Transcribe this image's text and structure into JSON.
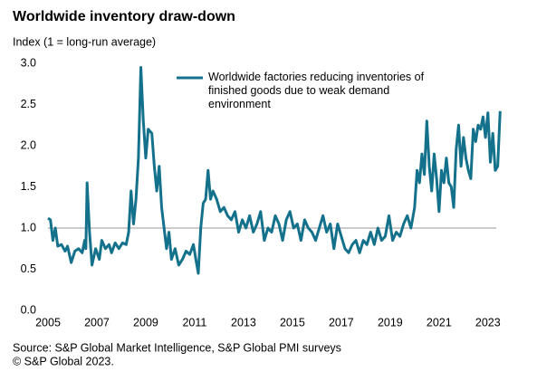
{
  "chart_data": {
    "type": "line",
    "title": "Worldwide inventory draw-down",
    "y_axis_label": "Index (1 = long-run average)",
    "source": "Source: S&P Global Market Intelligence, S&P Global PMI surveys",
    "copyright": "© S&P Global 2023.",
    "xlim": [
      2005,
      2023.6
    ],
    "xticks": [
      2005,
      2007,
      2009,
      2011,
      2013,
      2015,
      2017,
      2019,
      2021,
      2023
    ],
    "ylim": [
      0,
      3
    ],
    "yticks": [
      {
        "value": 0,
        "label": "0.0"
      },
      {
        "value": 0.5,
        "label": "0.5"
      },
      {
        "value": 1,
        "label": "1.0"
      },
      {
        "value": 1.5,
        "label": "1.5"
      },
      {
        "value": 2,
        "label": "2.0"
      },
      {
        "value": 2.5,
        "label": "2.5"
      },
      {
        "value": 3,
        "label": "3.0"
      }
    ],
    "reference_line": 1,
    "legend": "top",
    "x": [
      2005.0,
      2005.1,
      2005.2,
      2005.3,
      2005.4,
      2005.55,
      2005.7,
      2005.8,
      2005.95,
      2006.1,
      2006.25,
      2006.4,
      2006.5,
      2006.55,
      2006.6,
      2006.7,
      2006.8,
      2006.95,
      2007.1,
      2007.2,
      2007.35,
      2007.5,
      2007.6,
      2007.75,
      2007.9,
      2008.05,
      2008.2,
      2008.3,
      2008.4,
      2008.5,
      2008.6,
      2008.7,
      2008.8,
      2008.9,
      2009.0,
      2009.1,
      2009.25,
      2009.35,
      2009.45,
      2009.55,
      2009.65,
      2009.75,
      2009.85,
      2009.95,
      2010.05,
      2010.2,
      2010.35,
      2010.5,
      2010.65,
      2010.8,
      2010.95,
      2011.05,
      2011.15,
      2011.25,
      2011.35,
      2011.45,
      2011.55,
      2011.65,
      2011.75,
      2011.9,
      2012.05,
      2012.2,
      2012.35,
      2012.5,
      2012.65,
      2012.8,
      2012.95,
      2013.1,
      2013.25,
      2013.4,
      2013.55,
      2013.7,
      2013.85,
      2014.0,
      2014.15,
      2014.3,
      2014.45,
      2014.6,
      2014.75,
      2014.9,
      2015.05,
      2015.2,
      2015.35,
      2015.5,
      2015.65,
      2015.8,
      2015.95,
      2016.1,
      2016.25,
      2016.4,
      2016.55,
      2016.7,
      2016.85,
      2017.0,
      2017.15,
      2017.3,
      2017.45,
      2017.6,
      2017.75,
      2017.9,
      2018.05,
      2018.2,
      2018.35,
      2018.5,
      2018.65,
      2018.8,
      2018.95,
      2019.1,
      2019.25,
      2019.4,
      2019.55,
      2019.7,
      2019.85,
      2020.0,
      2020.1,
      2020.2,
      2020.3,
      2020.4,
      2020.5,
      2020.6,
      2020.7,
      2020.8,
      2020.9,
      2021.0,
      2021.1,
      2021.2,
      2021.3,
      2021.4,
      2021.5,
      2021.6,
      2021.7,
      2021.8,
      2021.9,
      2022.0,
      2022.1,
      2022.2,
      2022.3,
      2022.4,
      2022.5,
      2022.6,
      2022.7,
      2022.8,
      2022.9,
      2023.0,
      2023.1,
      2023.2,
      2023.3,
      2023.4,
      2023.5
    ],
    "series": [
      {
        "name": "Worldwide factories reducing inventories of finished goods due to weak demand environment",
        "color": "#14718c",
        "values": [
          1.12,
          1.1,
          0.85,
          1.0,
          0.78,
          0.8,
          0.72,
          0.78,
          0.58,
          0.72,
          0.75,
          0.7,
          0.85,
          0.75,
          1.55,
          0.95,
          0.55,
          0.75,
          0.62,
          0.85,
          0.75,
          0.8,
          0.7,
          0.82,
          0.75,
          0.82,
          0.8,
          0.95,
          1.45,
          1.05,
          1.35,
          1.85,
          2.95,
          2.3,
          1.85,
          2.2,
          2.15,
          1.75,
          1.45,
          1.75,
          1.25,
          1.0,
          0.75,
          0.95,
          0.62,
          0.75,
          0.55,
          0.62,
          0.72,
          0.68,
          0.8,
          0.62,
          0.45,
          1.0,
          1.3,
          1.35,
          1.7,
          1.35,
          1.45,
          1.35,
          1.2,
          1.25,
          1.15,
          1.1,
          1.2,
          0.95,
          1.1,
          1.0,
          1.15,
          0.95,
          1.05,
          1.2,
          0.85,
          1.0,
          0.95,
          1.15,
          1.05,
          0.85,
          1.1,
          1.2,
          1.0,
          1.05,
          0.85,
          1.1,
          1.0,
          0.95,
          0.85,
          1.0,
          1.15,
          0.95,
          1.05,
          0.75,
          1.05,
          0.9,
          0.75,
          0.7,
          0.8,
          0.85,
          0.7,
          0.85,
          0.8,
          0.95,
          0.8,
          1.0,
          0.85,
          0.9,
          1.15,
          0.85,
          0.95,
          0.9,
          1.05,
          1.15,
          1.0,
          1.25,
          1.7,
          1.55,
          1.9,
          1.65,
          2.3,
          1.75,
          1.45,
          1.9,
          1.6,
          1.2,
          1.7,
          1.55,
          1.85,
          1.55,
          1.5,
          1.25,
          1.95,
          2.25,
          1.75,
          2.1,
          1.85,
          1.7,
          1.6,
          2.2,
          2.05,
          2.25,
          2.2,
          2.35,
          2.1,
          2.4,
          1.8,
          2.15,
          1.7,
          1.75,
          2.42
        ]
      }
    ]
  }
}
